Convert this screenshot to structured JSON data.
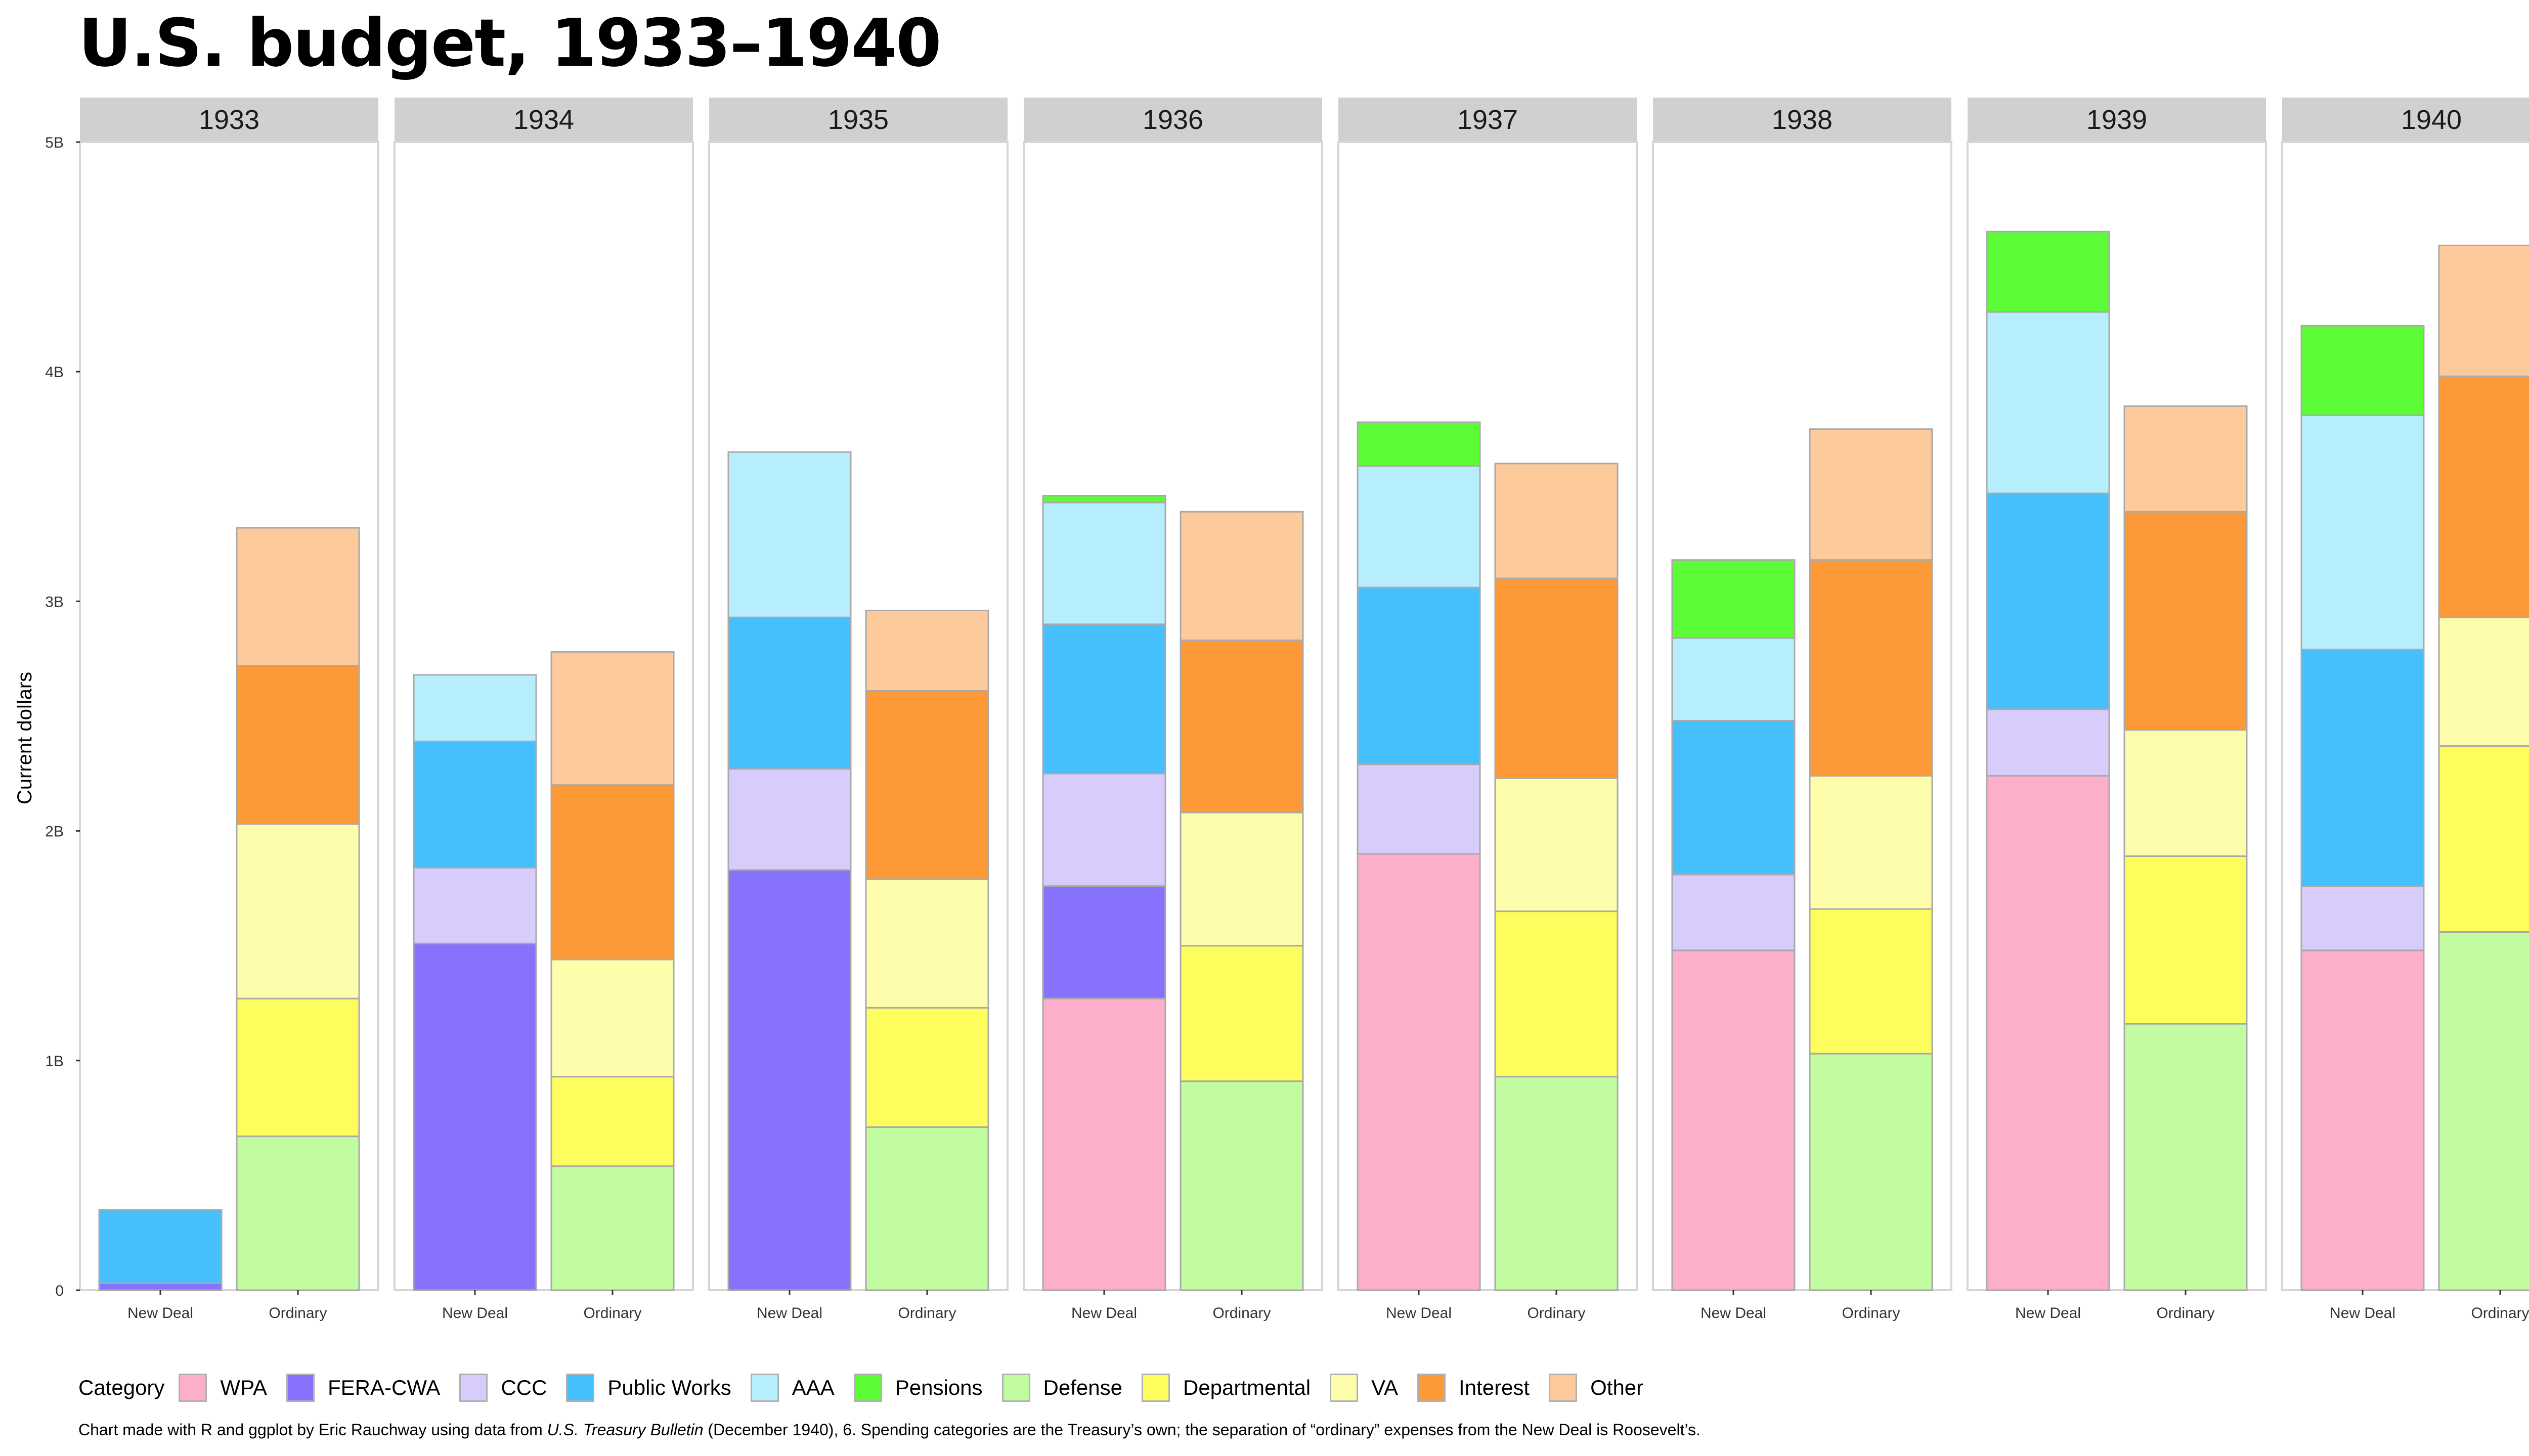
{
  "title": "U.S. budget, 1933–1940",
  "caption": {
    "before": "Chart made with R and ggplot by Eric Rauchway using data from ",
    "source": "U.S. Treasury Bulletin",
    "after": " (December 1940), 6. Spending categories are the Treasury’s own; the separation of “ordinary” expenses from the New Deal is Roosevelt’s."
  },
  "colors": {
    "WPA": "#fdaecb",
    "FERA-CWA": "#8672fc",
    "CCC": "#d8ccfc",
    "Public Works": "#45c0fd",
    "AAA": "#b6eefd",
    "Pensions": "#5cfd36",
    "Defense": "#c1fda0",
    "Departmental": "#fdfd5e",
    "VA": "#fdfdab",
    "Interest": "#fd9937",
    "Other": "#fdca9b"
  },
  "chart_data": {
    "type": "bar",
    "stacked": true,
    "facet_by": "year",
    "ylabel": "Current dollars",
    "xlabel": "",
    "ylim": [
      0,
      5
    ],
    "y_units": "billions of current dollars",
    "yticks": [
      {
        "value": 0,
        "label": "0"
      },
      {
        "value": 1,
        "label": "1B"
      },
      {
        "value": 2,
        "label": "2B"
      },
      {
        "value": 3,
        "label": "3B"
      },
      {
        "value": 4,
        "label": "4B"
      },
      {
        "value": 5,
        "label": "5B"
      }
    ],
    "legend_title": "Category",
    "legend_position": "bottom",
    "categories_new_deal": [
      "WPA",
      "FERA-CWA",
      "CCC",
      "Public Works",
      "AAA",
      "Pensions"
    ],
    "categories_ordinary": [
      "Defense",
      "Departmental",
      "VA",
      "Interest",
      "Other"
    ],
    "legend_order": [
      "WPA",
      "FERA-CWA",
      "CCC",
      "Public Works",
      "AAA",
      "Pensions",
      "Defense",
      "Departmental",
      "VA",
      "Interest",
      "Other"
    ],
    "panels": [
      {
        "year": "1933",
        "bars": [
          {
            "label": "New Deal",
            "segments": [
              [
                "FERA-CWA",
                0.03
              ],
              [
                "Public Works",
                0.32
              ]
            ]
          },
          {
            "label": "Ordinary",
            "segments": [
              [
                "Defense",
                0.67
              ],
              [
                "Departmental",
                0.6
              ],
              [
                "VA",
                0.76
              ],
              [
                "Interest",
                0.69
              ],
              [
                "Other",
                0.6
              ]
            ]
          }
        ]
      },
      {
        "year": "1934",
        "bars": [
          {
            "label": "New Deal",
            "segments": [
              [
                "FERA-CWA",
                1.51
              ],
              [
                "CCC",
                0.33
              ],
              [
                "Public Works",
                0.55
              ],
              [
                "AAA",
                0.29
              ]
            ]
          },
          {
            "label": "Ordinary",
            "segments": [
              [
                "Defense",
                0.54
              ],
              [
                "Departmental",
                0.39
              ],
              [
                "VA",
                0.51
              ],
              [
                "Interest",
                0.76
              ],
              [
                "Other",
                0.58
              ]
            ]
          }
        ]
      },
      {
        "year": "1935",
        "bars": [
          {
            "label": "New Deal",
            "segments": [
              [
                "FERA-CWA",
                1.83
              ],
              [
                "CCC",
                0.44
              ],
              [
                "Public Works",
                0.66
              ],
              [
                "AAA",
                0.72
              ]
            ]
          },
          {
            "label": "Ordinary",
            "segments": [
              [
                "Defense",
                0.71
              ],
              [
                "Departmental",
                0.52
              ],
              [
                "VA",
                0.56
              ],
              [
                "Interest",
                0.82
              ],
              [
                "Other",
                0.35
              ]
            ]
          }
        ]
      },
      {
        "year": "1936",
        "bars": [
          {
            "label": "New Deal",
            "segments": [
              [
                "WPA",
                1.27
              ],
              [
                "FERA-CWA",
                0.49
              ],
              [
                "CCC",
                0.49
              ],
              [
                "Public Works",
                0.65
              ],
              [
                "AAA",
                0.53
              ],
              [
                "Pensions",
                0.03
              ]
            ]
          },
          {
            "label": "Ordinary",
            "segments": [
              [
                "Defense",
                0.91
              ],
              [
                "Departmental",
                0.59
              ],
              [
                "VA",
                0.58
              ],
              [
                "Interest",
                0.75
              ],
              [
                "Other",
                0.56
              ]
            ]
          }
        ]
      },
      {
        "year": "1937",
        "bars": [
          {
            "label": "New Deal",
            "segments": [
              [
                "WPA",
                1.9
              ],
              [
                "CCC",
                0.39
              ],
              [
                "Public Works",
                0.77
              ],
              [
                "AAA",
                0.53
              ],
              [
                "Pensions",
                0.19
              ]
            ]
          },
          {
            "label": "Ordinary",
            "segments": [
              [
                "Defense",
                0.93
              ],
              [
                "Departmental",
                0.72
              ],
              [
                "VA",
                0.58
              ],
              [
                "Interest",
                0.87
              ],
              [
                "Other",
                0.5
              ]
            ]
          }
        ]
      },
      {
        "year": "1938",
        "bars": [
          {
            "label": "New Deal",
            "segments": [
              [
                "WPA",
                1.48
              ],
              [
                "CCC",
                0.33
              ],
              [
                "Public Works",
                0.67
              ],
              [
                "AAA",
                0.36
              ],
              [
                "Pensions",
                0.34
              ]
            ]
          },
          {
            "label": "Ordinary",
            "segments": [
              [
                "Defense",
                1.03
              ],
              [
                "Departmental",
                0.63
              ],
              [
                "VA",
                0.58
              ],
              [
                "Interest",
                0.94
              ],
              [
                "Other",
                0.57
              ]
            ]
          }
        ]
      },
      {
        "year": "1939",
        "bars": [
          {
            "label": "New Deal",
            "segments": [
              [
                "WPA",
                2.24
              ],
              [
                "CCC",
                0.29
              ],
              [
                "Public Works",
                0.94
              ],
              [
                "AAA",
                0.79
              ],
              [
                "Pensions",
                0.35
              ]
            ]
          },
          {
            "label": "Ordinary",
            "segments": [
              [
                "Defense",
                1.16
              ],
              [
                "Departmental",
                0.73
              ],
              [
                "VA",
                0.55
              ],
              [
                "Interest",
                0.95
              ],
              [
                "Other",
                0.46
              ]
            ]
          }
        ]
      },
      {
        "year": "1940",
        "bars": [
          {
            "label": "New Deal",
            "segments": [
              [
                "WPA",
                1.48
              ],
              [
                "CCC",
                0.28
              ],
              [
                "Public Works",
                1.03
              ],
              [
                "AAA",
                1.02
              ],
              [
                "Pensions",
                0.39
              ]
            ]
          },
          {
            "label": "Ordinary",
            "segments": [
              [
                "Defense",
                1.56
              ],
              [
                "Departmental",
                0.81
              ],
              [
                "VA",
                0.56
              ],
              [
                "Interest",
                1.05
              ],
              [
                "Other",
                0.57
              ]
            ]
          }
        ]
      }
    ]
  }
}
